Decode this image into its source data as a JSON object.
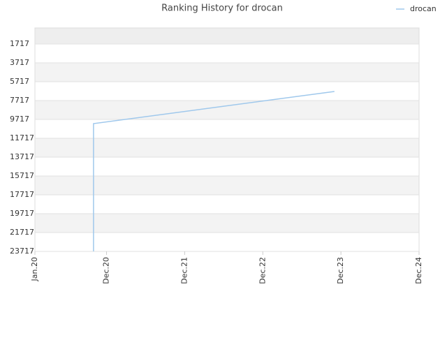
{
  "chart_data": {
    "type": "line",
    "title": "Ranking History for drocan",
    "x": [
      "2020-10",
      "2020-10",
      "2023-11"
    ],
    "series": [
      {
        "name": "drocan",
        "color": "#9fc8ec",
        "values": [
          23717,
          10161,
          6753
        ]
      }
    ],
    "ylim": [
      23717,
      13
    ],
    "yticks": [
      1717,
      3717,
      5717,
      7717,
      9717,
      11717,
      13717,
      15717,
      17717,
      19717,
      21717,
      23717
    ],
    "xlim": [
      "2020-01",
      "2024-12"
    ],
    "xticks": [
      {
        "value": "2020-01",
        "label": "Jan.20"
      },
      {
        "value": "2020-12",
        "label": "Dec.20"
      },
      {
        "value": "2021-12",
        "label": "Dec.21"
      },
      {
        "value": "2022-12",
        "label": "Dec.22"
      },
      {
        "value": "2023-12",
        "label": "Dec.23"
      },
      {
        "value": "2024-12",
        "label": "Dec.24"
      }
    ],
    "grid": true,
    "legend": "top-right"
  }
}
